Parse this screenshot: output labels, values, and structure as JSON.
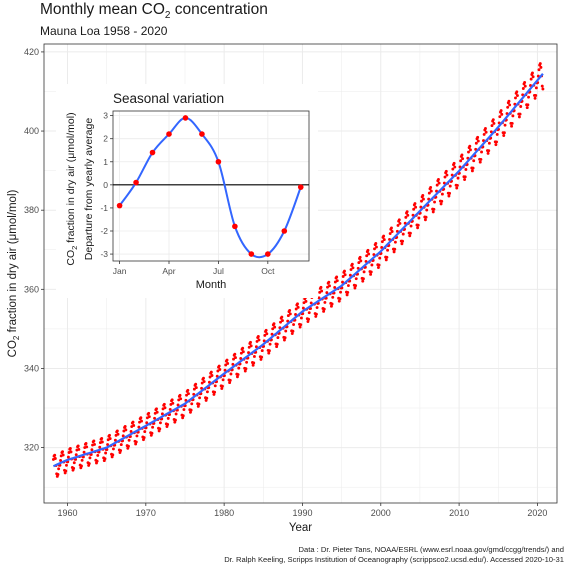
{
  "title_prefix": "Monthly mean CO",
  "title_sub": "2",
  "title_suffix": " concentration",
  "subtitle": "Mauna Loa 1958 - 2020",
  "credit": [
    "Data : Dr. Pieter Tans, NOAA/ESRL (www.esrl.noaa.gov/gmd/ccgg/trends/) and",
    "Dr. Ralph Keeling, Scripps Institution of Oceanography (scrippsco2.ucsd.edu/). Accessed  2020-10-31"
  ],
  "colors": {
    "points": "#ff0000",
    "line": "#3366ff",
    "grid": "#ebebeb",
    "zero_line": "#000000"
  },
  "chart_data": [
    {
      "type": "scatter",
      "title": "Monthly mean CO2 concentration",
      "subtitle": "Mauna Loa 1958 - 2020",
      "xlabel": "Year",
      "ylabel_prefix": "CO",
      "ylabel_sub": "2",
      "ylabel_suffix": " fraction in dry air (μmol/mol)",
      "xlim": [
        1957,
        2022.5
      ],
      "ylim": [
        306,
        422
      ],
      "x_ticks": [
        1960,
        1970,
        1980,
        1990,
        2000,
        2010,
        2020
      ],
      "y_ticks": [
        320,
        340,
        360,
        380,
        400,
        420
      ],
      "grid": true,
      "series": [
        {
          "kind": "monthly-points",
          "x_range": [
            1958.2,
            2020.75
          ],
          "seasonal_amplitude": 3.0
        },
        {
          "kind": "trend-line",
          "x": [
            1958.2,
            1960,
            1965,
            1970,
            1975,
            1980,
            1985,
            1990,
            1995,
            2000,
            2005,
            2010,
            2015,
            2020.75
          ],
          "y": [
            315.3,
            316.9,
            320.0,
            325.5,
            331.1,
            338.7,
            346.1,
            354.4,
            360.9,
            369.6,
            379.8,
            389.9,
            401.0,
            414.6
          ]
        }
      ]
    },
    {
      "type": "line",
      "title": "Seasonal variation",
      "xlabel": "Month",
      "ylabel_line1_prefix": "CO",
      "ylabel_line1_sub": "2",
      "ylabel_line1_suffix": " fraction in dry air (μmol/mol)",
      "ylabel_line2": "Departure from yearly average",
      "x_ticks": [
        {
          "x": 1,
          "label": "Jan"
        },
        {
          "x": 4,
          "label": "Apr"
        },
        {
          "x": 7,
          "label": "Jul"
        },
        {
          "x": 10,
          "label": "Oct"
        }
      ],
      "y_ticks": [
        -3,
        -2,
        -1,
        0,
        1,
        2,
        3
      ],
      "xlim": [
        0.6,
        12.5
      ],
      "ylim": [
        -3.3,
        3.2
      ],
      "months": [
        1,
        2,
        3,
        4,
        5,
        6,
        7,
        8,
        9,
        10,
        11,
        12
      ],
      "values": [
        -0.9,
        0.1,
        1.4,
        2.2,
        2.9,
        2.2,
        1.0,
        -1.8,
        -3.0,
        -3.0,
        -2.0,
        -0.1
      ],
      "grid": true
    }
  ]
}
